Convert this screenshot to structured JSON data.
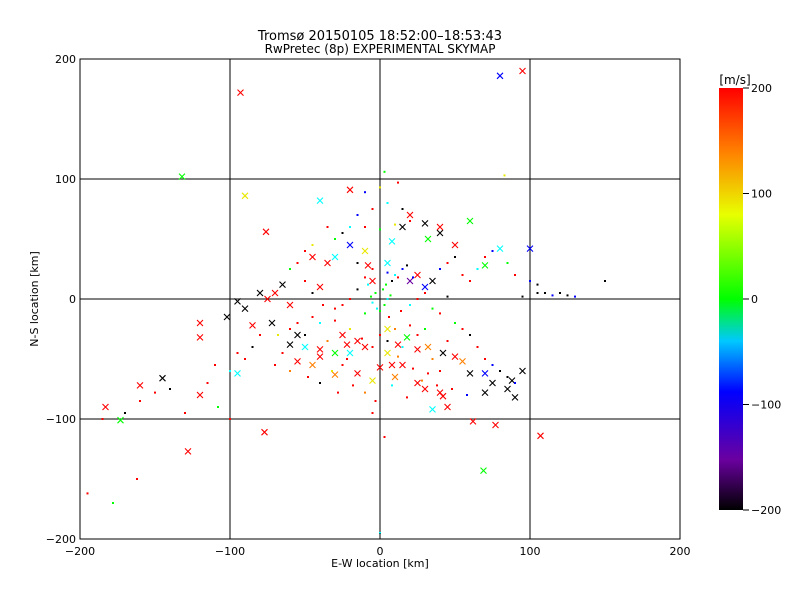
{
  "chart_data": [
    {
      "type": "scatter",
      "title": "Tromsø 20150105 18:52:00–18:53:43",
      "subtitle": "RwPretec (8p) EXPERIMENTAL SKYMAP",
      "xlabel": "E-W location [km]",
      "ylabel": "N-S location [km]",
      "xlim": [
        -200,
        200
      ],
      "ylim": [
        -200,
        200
      ],
      "xticks": [
        -200,
        -100,
        0,
        100,
        200
      ],
      "yticks": [
        -200,
        -100,
        0,
        100,
        200
      ],
      "grid": "lines at -100, 0, 100",
      "color_encoding": "velocity [m/s]",
      "series": [
        {
          "marker": "x",
          "points": [
            [
              -93,
              172
            ],
            [
              -132,
              102
            ],
            [
              -90,
              86
            ],
            [
              -76,
              56
            ],
            [
              -183,
              -90
            ],
            [
              -173,
              -101
            ],
            [
              -160,
              -72
            ],
            [
              -145,
              -66
            ],
            [
              -128,
              -127
            ],
            [
              -120,
              -80
            ],
            [
              -95,
              -62
            ],
            [
              -77,
              -111
            ],
            [
              62,
              -102
            ],
            [
              69,
              -143
            ],
            [
              77,
              -105
            ],
            [
              80,
              186
            ],
            [
              95,
              190
            ],
            [
              107,
              -114
            ],
            [
              -120,
              -20
            ],
            [
              -120,
              -32
            ],
            [
              -40,
              -42
            ],
            [
              -55,
              -30
            ],
            [
              -72,
              -20
            ],
            [
              -30,
              -63
            ],
            [
              -20,
              -45
            ],
            [
              -10,
              -40
            ],
            [
              5,
              -25
            ],
            [
              15,
              -55
            ],
            [
              25,
              -70
            ],
            [
              35,
              -92
            ],
            [
              45,
              -90
            ],
            [
              60,
              -62
            ],
            [
              70,
              -62
            ],
            [
              75,
              -70
            ],
            [
              85,
              -75
            ],
            [
              90,
              -82
            ],
            [
              95,
              -60
            ],
            [
              -70,
              5
            ],
            [
              -65,
              12
            ],
            [
              -60,
              -5
            ],
            [
              -75,
              0
            ],
            [
              -80,
              5
            ],
            [
              -90,
              -8
            ],
            [
              -102,
              -15
            ],
            [
              -95,
              -2
            ],
            [
              -85,
              -22
            ],
            [
              -40,
              10
            ],
            [
              -35,
              30
            ],
            [
              -30,
              35
            ],
            [
              -45,
              35
            ],
            [
              -20,
              45
            ],
            [
              -10,
              40
            ],
            [
              8,
              48
            ],
            [
              15,
              60
            ],
            [
              20,
              70
            ],
            [
              32,
              50
            ],
            [
              40,
              55
            ],
            [
              50,
              45
            ],
            [
              60,
              65
            ],
            [
              70,
              28
            ],
            [
              80,
              42
            ],
            [
              100,
              42
            ],
            [
              -20,
              91
            ],
            [
              -40,
              82
            ],
            [
              30,
              63
            ],
            [
              40,
              60
            ],
            [
              20,
              15
            ],
            [
              25,
              20
            ],
            [
              30,
              10
            ],
            [
              35,
              15
            ],
            [
              -5,
              15
            ],
            [
              -8,
              28
            ],
            [
              5,
              30
            ],
            [
              -15,
              -35
            ],
            [
              -25,
              -30
            ],
            [
              -30,
              -45
            ],
            [
              -40,
              -48
            ],
            [
              -45,
              -55
            ],
            [
              -50,
              -40
            ],
            [
              -55,
              -52
            ],
            [
              5,
              -45
            ],
            [
              8,
              -55
            ],
            [
              12,
              -38
            ],
            [
              18,
              -32
            ],
            [
              25,
              -42
            ],
            [
              32,
              -40
            ],
            [
              42,
              -45
            ],
            [
              50,
              -48
            ],
            [
              55,
              -52
            ],
            [
              30,
              -75
            ],
            [
              40,
              -78
            ],
            [
              -5,
              -68
            ],
            [
              -15,
              -62
            ],
            [
              -22,
              -38
            ],
            [
              -60,
              -38
            ],
            [
              0,
              -57
            ],
            [
              10,
              -65
            ],
            [
              42,
              -81
            ],
            [
              70,
              -78
            ],
            [
              88,
              -68
            ]
          ]
        },
        {
          "marker": "dot",
          "points": [
            [
              0,
              -10
            ],
            [
              3,
              -5
            ],
            [
              5,
              0
            ],
            [
              -3,
              5
            ],
            [
              2,
              8
            ],
            [
              -5,
              -3
            ],
            [
              7,
              3
            ],
            [
              -2,
              -8
            ],
            [
              4,
              12
            ],
            [
              -6,
              2
            ],
            [
              10,
              20
            ],
            [
              15,
              25
            ],
            [
              8,
              15
            ],
            [
              12,
              18
            ],
            [
              5,
              22
            ],
            [
              18,
              28
            ],
            [
              -5,
              25
            ],
            [
              -10,
              18
            ],
            [
              -15,
              30
            ],
            [
              22,
              18
            ],
            [
              0,
              -30
            ],
            [
              5,
              -35
            ],
            [
              -5,
              -40
            ],
            [
              10,
              -25
            ],
            [
              15,
              -40
            ],
            [
              -12,
              -33
            ],
            [
              -20,
              -25
            ],
            [
              20,
              -22
            ],
            [
              25,
              -30
            ],
            [
              30,
              -25
            ],
            [
              -30,
              -18
            ],
            [
              -35,
              -35
            ],
            [
              -40,
              -20
            ],
            [
              -25,
              -55
            ],
            [
              35,
              -50
            ],
            [
              40,
              -60
            ],
            [
              45,
              -35
            ],
            [
              50,
              -20
            ],
            [
              55,
              -25
            ],
            [
              -45,
              -15
            ],
            [
              -50,
              -30
            ],
            [
              -55,
              -20
            ],
            [
              -60,
              -60
            ],
            [
              -65,
              -45
            ],
            [
              -70,
              -55
            ],
            [
              60,
              -30
            ],
            [
              65,
              -40
            ],
            [
              70,
              -50
            ],
            [
              75,
              -55
            ],
            [
              80,
              -60
            ],
            [
              85,
              -65
            ],
            [
              90,
              -70
            ],
            [
              -80,
              -30
            ],
            [
              -85,
              -40
            ],
            [
              -90,
              -50
            ],
            [
              -95,
              -45
            ],
            [
              -100,
              -60
            ],
            [
              -110,
              -55
            ],
            [
              -115,
              -70
            ],
            [
              -108,
              -90
            ],
            [
              -130,
              -95
            ],
            [
              -140,
              -75
            ],
            [
              -150,
              -78
            ],
            [
              -160,
              -85
            ],
            [
              -170,
              -95
            ],
            [
              -185,
              -100
            ],
            [
              -195,
              -162
            ],
            [
              -178,
              -170
            ],
            [
              -162,
              -150
            ],
            [
              -100,
              -100
            ],
            [
              40,
              25
            ],
            [
              45,
              30
            ],
            [
              50,
              35
            ],
            [
              55,
              20
            ],
            [
              60,
              15
            ],
            [
              65,
              25
            ],
            [
              70,
              35
            ],
            [
              75,
              40
            ],
            [
              85,
              30
            ],
            [
              90,
              20
            ],
            [
              100,
              15
            ],
            [
              105,
              5
            ],
            [
              110,
              5
            ],
            [
              115,
              3
            ],
            [
              120,
              5
            ],
            [
              125,
              3
            ],
            [
              130,
              2
            ],
            [
              150,
              15
            ],
            [
              95,
              2
            ],
            [
              105,
              12
            ],
            [
              -20,
              60
            ],
            [
              -25,
              55
            ],
            [
              -10,
              60
            ],
            [
              0,
              58
            ],
            [
              10,
              62
            ],
            [
              20,
              65
            ],
            [
              -15,
              70
            ],
            [
              -5,
              75
            ],
            [
              5,
              80
            ],
            [
              15,
              75
            ],
            [
              -35,
              60
            ],
            [
              -30,
              50
            ],
            [
              -45,
              45
            ],
            [
              -50,
              40
            ],
            [
              -55,
              30
            ],
            [
              -60,
              25
            ],
            [
              -50,
              15
            ],
            [
              -45,
              5
            ],
            [
              -38,
              -5
            ],
            [
              -30,
              -8
            ],
            [
              20,
              -5
            ],
            [
              25,
              0
            ],
            [
              30,
              5
            ],
            [
              35,
              -8
            ],
            [
              40,
              -12
            ],
            [
              45,
              2
            ],
            [
              -20,
              0
            ],
            [
              -25,
              -5
            ],
            [
              -15,
              8
            ],
            [
              -10,
              -12
            ],
            [
              3,
              106
            ],
            [
              0,
              93
            ],
            [
              12,
              97
            ],
            [
              -10,
              89
            ],
            [
              83,
              103
            ],
            [
              -60,
              -25
            ],
            [
              -68,
              -30
            ],
            [
              -5,
              -95
            ],
            [
              3,
              -115
            ],
            [
              0,
              -195
            ],
            [
              -3,
              -85
            ],
            [
              -10,
              -78
            ],
            [
              8,
              -72
            ],
            [
              18,
              -82
            ],
            [
              28,
              -68
            ],
            [
              38,
              -72
            ],
            [
              48,
              -75
            ],
            [
              58,
              -80
            ],
            [
              -18,
              -72
            ],
            [
              -28,
              -78
            ],
            [
              -40,
              -70
            ],
            [
              -48,
              -65
            ],
            [
              12,
              -48
            ],
            [
              22,
              -58
            ],
            [
              32,
              -62
            ],
            [
              -32,
              -60
            ],
            [
              -22,
              -50
            ],
            [
              6,
              -15
            ],
            [
              -8,
              12
            ],
            [
              14,
              -10
            ]
          ]
        }
      ],
      "colorbar": {
        "label": "[m/s]",
        "min": -200,
        "max": 200,
        "ticks": [
          -200,
          -100,
          0,
          100,
          200
        ]
      },
      "colors": {
        "red": "#ff0000",
        "orange": "#ff8000",
        "yellow": "#e8e800",
        "green": "#00ff00",
        "cyan": "#00ffff",
        "blue": "#0000ff",
        "purple": "#6a00a0",
        "black": "#000000"
      }
    }
  ]
}
